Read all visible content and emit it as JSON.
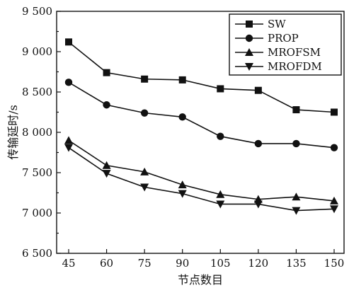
{
  "chart_data": {
    "type": "line",
    "xlabel": "节点数目",
    "ylabel": "传输延时/s",
    "x": [
      45,
      60,
      75,
      90,
      105,
      120,
      135,
      150
    ],
    "x_tick_labels": [
      "45",
      "60",
      "75",
      "90",
      "105",
      "120",
      "135",
      "150"
    ],
    "y_ticks": [
      6500,
      7000,
      7500,
      8000,
      8500,
      9000,
      9500
    ],
    "y_tick_labels": [
      "6 500",
      "7 000",
      "7 500",
      "8 000",
      "8 500",
      "9 000",
      "9 500"
    ],
    "ylim": [
      6500,
      9500
    ],
    "grid": false,
    "legend_position": "top-right",
    "series": [
      {
        "name": "SW",
        "marker": "square",
        "values": [
          9120,
          8740,
          8660,
          8650,
          8540,
          8520,
          8280,
          8250
        ]
      },
      {
        "name": "PROP",
        "marker": "circle",
        "values": [
          8620,
          8340,
          8240,
          8190,
          7950,
          7860,
          7860,
          7810
        ]
      },
      {
        "name": "MROFSM",
        "marker": "triangle-up",
        "values": [
          7900,
          7590,
          7510,
          7350,
          7230,
          7170,
          7200,
          7150
        ]
      },
      {
        "name": "MROFDM",
        "marker": "triangle-down",
        "values": [
          7810,
          7490,
          7320,
          7240,
          7110,
          7110,
          7030,
          7050
        ]
      }
    ],
    "colors": {
      "line": "#111111",
      "background": "#ffffff"
    }
  }
}
